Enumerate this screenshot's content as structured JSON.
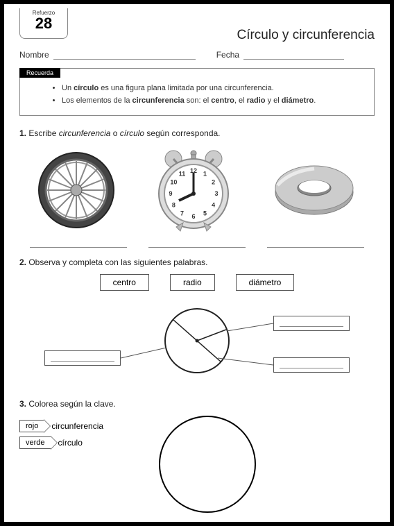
{
  "badge": {
    "label": "Refuerzo",
    "number": "28"
  },
  "title": "Círculo y circunferencia",
  "fields": {
    "nombre": "Nombre",
    "fecha": "Fecha"
  },
  "recuerda": {
    "tag": "Recuerda",
    "line1_pre": "Un ",
    "line1_b1": "círculo",
    "line1_post": " es una figura plana limitada por una circunferencia.",
    "line2_pre": "Los elementos de la ",
    "line2_b1": "circunferencia",
    "line2_mid": " son: el ",
    "line2_b2": "centro",
    "line2_mid2": ", el ",
    "line2_b3": "radio",
    "line2_mid3": " y el ",
    "line2_b4": "diámetro",
    "line2_post": "."
  },
  "q1": {
    "num": "1.",
    "text_pre": " Escribe ",
    "text_i1": "circunferencia",
    "text_mid": " o ",
    "text_i2": "círculo",
    "text_post": " según corresponda.",
    "clock_numbers": [
      "12",
      "1",
      "2",
      "3",
      "4",
      "5",
      "6",
      "7",
      "8",
      "9",
      "10",
      "11"
    ]
  },
  "q2": {
    "num": "2.",
    "text": " Observa y completa con las siguientes palabras.",
    "words": [
      "centro",
      "radio",
      "diámetro"
    ]
  },
  "q3": {
    "num": "3.",
    "text": " Colorea según la clave.",
    "keys": [
      {
        "tag": "rojo",
        "label": "circunferencia"
      },
      {
        "tag": "verde",
        "label": "círculo"
      }
    ]
  },
  "colors": {
    "ink": "#222222",
    "gray": "#888888",
    "light": "#cccccc",
    "dark": "#555555"
  }
}
